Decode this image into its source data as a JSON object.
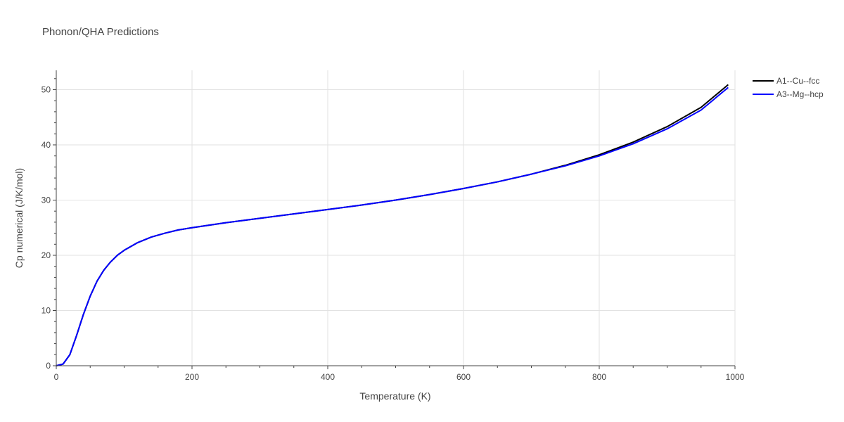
{
  "chart_data": {
    "type": "line",
    "title": "Phonon/QHA Predictions",
    "xlabel": "Temperature (K)",
    "ylabel": "Cp numerical (J/K/mol)",
    "xlim": [
      0,
      1000
    ],
    "ylim": [
      0,
      53.5
    ],
    "xticks": [
      0,
      200,
      400,
      600,
      800,
      1000
    ],
    "yticks": [
      0,
      10,
      20,
      30,
      40,
      50
    ],
    "grid": true,
    "legend_position": "top-right",
    "series": [
      {
        "name": "A1--Cu--fcc",
        "color": "#000000",
        "x": [
          0,
          10,
          20,
          30,
          40,
          50,
          60,
          70,
          80,
          90,
          100,
          120,
          140,
          160,
          180,
          200,
          250,
          300,
          350,
          400,
          450,
          500,
          550,
          600,
          650,
          700,
          750,
          800,
          850,
          900,
          950,
          990
        ],
        "y": [
          0,
          0.3,
          2.0,
          5.5,
          9.3,
          12.6,
          15.3,
          17.3,
          18.8,
          20.0,
          20.9,
          22.3,
          23.3,
          24.0,
          24.6,
          25.0,
          25.9,
          26.7,
          27.5,
          28.3,
          29.1,
          30.0,
          31.0,
          32.1,
          33.3,
          34.7,
          36.3,
          38.2,
          40.5,
          43.3,
          46.8,
          50.9
        ]
      },
      {
        "name": "A3--Mg--hcp",
        "color": "#0000ff",
        "x": [
          0,
          10,
          20,
          30,
          40,
          50,
          60,
          70,
          80,
          90,
          100,
          120,
          140,
          160,
          180,
          200,
          250,
          300,
          350,
          400,
          450,
          500,
          550,
          600,
          650,
          700,
          750,
          800,
          850,
          900,
          950,
          990
        ],
        "y": [
          0,
          0.3,
          2.0,
          5.5,
          9.3,
          12.6,
          15.3,
          17.3,
          18.8,
          20.0,
          20.9,
          22.3,
          23.3,
          24.0,
          24.6,
          25.0,
          25.9,
          26.7,
          27.5,
          28.3,
          29.1,
          30.0,
          31.0,
          32.1,
          33.3,
          34.7,
          36.2,
          38.0,
          40.2,
          42.9,
          46.3,
          50.4
        ]
      }
    ]
  }
}
